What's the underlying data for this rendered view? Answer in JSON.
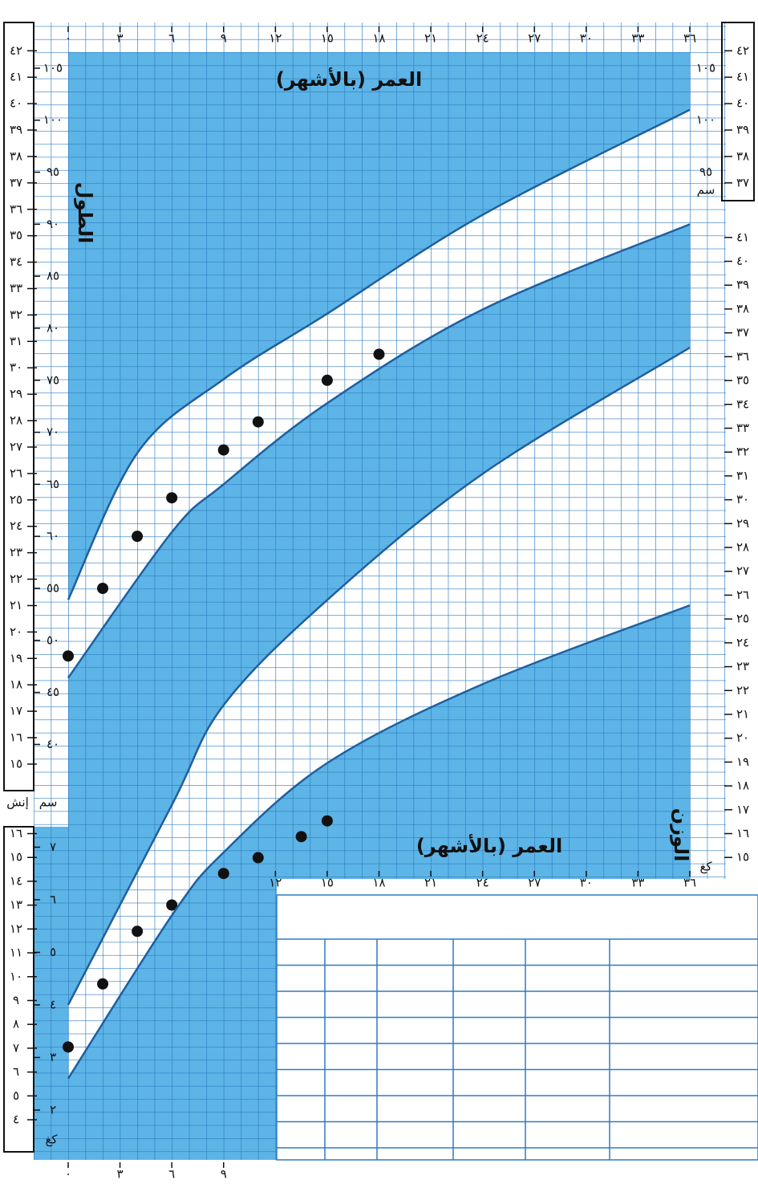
{
  "chart_data": [
    {
      "type": "scatter",
      "x_label": "العمر (بالأشهر)",
      "y_label": "الطول",
      "y_unit": "سم",
      "y2_unit": "إنش",
      "xlim": [
        0,
        36
      ],
      "xticks": [
        {
          "value": 0,
          "label": "٠"
        },
        {
          "value": 3,
          "label": "٣"
        },
        {
          "value": 6,
          "label": "٦"
        },
        {
          "value": 9,
          "label": "٩"
        },
        {
          "value": 12,
          "label": "١٢"
        },
        {
          "value": 15,
          "label": "١٥"
        },
        {
          "value": 18,
          "label": "١٨"
        },
        {
          "value": 21,
          "label": "٢١"
        },
        {
          "value": 24,
          "label": "٢٤"
        },
        {
          "value": 27,
          "label": "٢٧"
        },
        {
          "value": 30,
          "label": "٣٠"
        },
        {
          "value": 33,
          "label": "٣٣"
        },
        {
          "value": 36,
          "label": "٣٦"
        }
      ],
      "ylim": [
        34.4,
        107
      ],
      "yticks": [
        {
          "value": 40,
          "label": "٤٠"
        },
        {
          "value": 45,
          "label": "٤٥"
        },
        {
          "value": 50,
          "label": "٥٠"
        },
        {
          "value": 55,
          "label": "٥٥"
        },
        {
          "value": 60,
          "label": "٦٠"
        },
        {
          "value": 65,
          "label": "٦٥"
        },
        {
          "value": 70,
          "label": "٧٠"
        },
        {
          "value": 75,
          "label": "٧٥"
        },
        {
          "value": 80,
          "label": "٨٠"
        },
        {
          "value": 85,
          "label": "٨٥"
        },
        {
          "value": 90,
          "label": "٩٠"
        },
        {
          "value": 95,
          "label": "٩٥"
        },
        {
          "value": 100,
          "label": "١٠٠"
        },
        {
          "value": 105,
          "label": "١٠٥"
        }
      ],
      "y2lim": [
        13.54,
        42.13
      ],
      "y2ticks": [
        {
          "value": 15,
          "label": "١٥"
        },
        {
          "value": 16,
          "label": "١٦"
        },
        {
          "value": 17,
          "label": "١٧"
        },
        {
          "value": 18,
          "label": "١٨"
        },
        {
          "value": 19,
          "label": "١٩"
        },
        {
          "value": 20,
          "label": "٢٠"
        },
        {
          "value": 21,
          "label": "٢١"
        },
        {
          "value": 22,
          "label": "٢٢"
        },
        {
          "value": 23,
          "label": "٢٣"
        },
        {
          "value": 24,
          "label": "٢٤"
        },
        {
          "value": 25,
          "label": "٢٥"
        },
        {
          "value": 26,
          "label": "٢٦"
        },
        {
          "value": 27,
          "label": "٢٧"
        },
        {
          "value": 28,
          "label": "٢٨"
        },
        {
          "value": 29,
          "label": "٢٩"
        },
        {
          "value": 30,
          "label": "٣٠"
        },
        {
          "value": 31,
          "label": "٣١"
        },
        {
          "value": 32,
          "label": "٣٢"
        },
        {
          "value": 33,
          "label": "٣٣"
        },
        {
          "value": 34,
          "label": "٣٤"
        },
        {
          "value": 35,
          "label": "٣٥"
        },
        {
          "value": 36,
          "label": "٣٦"
        },
        {
          "value": 37,
          "label": "٣٧"
        },
        {
          "value": 38,
          "label": "٣٨"
        },
        {
          "value": 39,
          "label": "٣٩"
        },
        {
          "value": 40,
          "label": "٤٠"
        },
        {
          "value": 41,
          "label": "٤١"
        },
        {
          "value": 42,
          "label": "٤٢"
        }
      ],
      "series": [
        {
          "type": "scatter",
          "color": "#111111",
          "x": [
            0,
            2,
            4,
            6,
            9,
            11,
            15,
            18
          ],
          "values": [
            48.5,
            55,
            60,
            63.7,
            68.3,
            71,
            75,
            77.5
          ]
        },
        {
          "type": "line",
          "color": "#1f5f9e",
          "x": [
            0,
            4,
            9,
            15,
            24,
            36
          ],
          "values": [
            53.9,
            68,
            75.1,
            81.4,
            90.9,
            101
          ]
        },
        {
          "type": "line",
          "color": "#1f5f9e",
          "x": [
            0,
            6,
            9,
            15,
            24,
            36
          ],
          "values": [
            46.4,
            60.4,
            65,
            72.8,
            81.8,
            90
          ]
        }
      ]
    },
    {
      "type": "scatter",
      "x_label": "العمر (بالأشهر)",
      "y_label": "الوزن",
      "y_unit": "كغ",
      "xlim": [
        0,
        36
      ],
      "xticks": [
        {
          "value": 0,
          "label": "٠"
        },
        {
          "value": 3,
          "label": "٣"
        },
        {
          "value": 6,
          "label": "٦"
        },
        {
          "value": 9,
          "label": "٩"
        },
        {
          "value": 12,
          "label": "١٢"
        },
        {
          "value": 15,
          "label": "١٥"
        },
        {
          "value": 18,
          "label": "١٨"
        },
        {
          "value": 21,
          "label": "٢١"
        },
        {
          "value": 24,
          "label": "٢٤"
        },
        {
          "value": 27,
          "label": "٢٧"
        },
        {
          "value": 30,
          "label": "٣٠"
        },
        {
          "value": 33,
          "label": "٣٣"
        },
        {
          "value": 36,
          "label": "٣٦"
        }
      ],
      "ylim": [
        1,
        18.7
      ],
      "yticks": [
        {
          "value": 2,
          "label": "٢"
        },
        {
          "value": 3,
          "label": "٣"
        },
        {
          "value": 4,
          "label": "٤"
        },
        {
          "value": 5,
          "label": "٥"
        },
        {
          "value": 6,
          "label": "٦"
        },
        {
          "value": 7,
          "label": "٧"
        }
      ],
      "y2lim": [
        2.2,
        41.23
      ],
      "y2ticks": [
        {
          "value": 4,
          "label": "٤"
        },
        {
          "value": 5,
          "label": "٥"
        },
        {
          "value": 6,
          "label": "٦"
        },
        {
          "value": 7,
          "label": "٧"
        },
        {
          "value": 8,
          "label": "٨"
        },
        {
          "value": 9,
          "label": "٩"
        },
        {
          "value": 10,
          "label": "١٠"
        },
        {
          "value": 11,
          "label": "١١"
        },
        {
          "value": 12,
          "label": "١٢"
        },
        {
          "value": 13,
          "label": "١٣"
        },
        {
          "value": 14,
          "label": "١٤"
        },
        {
          "value": 15,
          "label": "١٥"
        },
        {
          "value": 16,
          "label": "١٦"
        },
        {
          "value": 17,
          "label": "١٧"
        },
        {
          "value": 18,
          "label": "١٨"
        },
        {
          "value": 19,
          "label": "١٩"
        },
        {
          "value": 20,
          "label": "٢٠"
        },
        {
          "value": 21,
          "label": "٢١"
        },
        {
          "value": 22,
          "label": "٢٢"
        },
        {
          "value": 23,
          "label": "٢٣"
        },
        {
          "value": 24,
          "label": "٢٤"
        },
        {
          "value": 25,
          "label": "٢٥"
        },
        {
          "value": 26,
          "label": "٢٦"
        },
        {
          "value": 27,
          "label": "٢٧"
        },
        {
          "value": 28,
          "label": "٢٨"
        },
        {
          "value": 29,
          "label": "٢٩"
        },
        {
          "value": 30,
          "label": "٣٠"
        },
        {
          "value": 31,
          "label": "٣١"
        },
        {
          "value": 32,
          "label": "٣٢"
        },
        {
          "value": 33,
          "label": "٣٣"
        },
        {
          "value": 34,
          "label": "٣٤"
        },
        {
          "value": 35,
          "label": "٣٥"
        },
        {
          "value": 36,
          "label": "٣٦"
        },
        {
          "value": 37,
          "label": "٣٧"
        },
        {
          "value": 38,
          "label": "٣٨"
        },
        {
          "value": 39,
          "label": "٣٩"
        },
        {
          "value": 40,
          "label": "٤٠"
        },
        {
          "value": 41,
          "label": "٤١"
        }
      ],
      "series": [
        {
          "type": "scatter",
          "color": "#111111",
          "x": [
            0,
            2,
            4,
            6,
            9,
            11,
            13.5,
            15
          ],
          "values": [
            3.2,
            4.4,
            5.4,
            5.9,
            6.5,
            6.8,
            7.2,
            7.5
          ]
        },
        {
          "type": "line",
          "color": "#1f5f9e",
          "x": [
            0,
            6,
            9,
            15,
            24,
            36
          ],
          "values": [
            4,
            7.8,
            9.7,
            11.7,
            14.1,
            16.5
          ]
        },
        {
          "type": "line",
          "color": "#1f5f9e",
          "x": [
            0,
            6,
            9,
            15,
            24,
            36
          ],
          "values": [
            2.6,
            5.7,
            6.9,
            8.6,
            10.1,
            11.6
          ]
        }
      ]
    }
  ]
}
